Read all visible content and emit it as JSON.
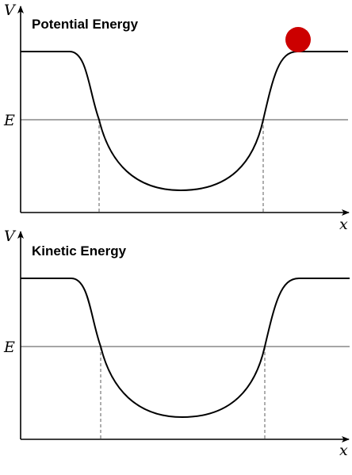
{
  "panels": [
    {
      "title": "Potential Energy",
      "y_axis_label": "V",
      "x_axis_label": "x",
      "energy_label": "E",
      "ball_color": "#cc0000",
      "curve_color": "#000000",
      "energy_line_color": "#888888",
      "turning_line_color": "#777777"
    },
    {
      "title": "Kinetic Energy",
      "y_axis_label": "V",
      "x_axis_label": "x",
      "energy_label": "E",
      "curve_color": "#000000",
      "energy_line_color": "#888888",
      "turning_line_color": "#777777"
    }
  ]
}
